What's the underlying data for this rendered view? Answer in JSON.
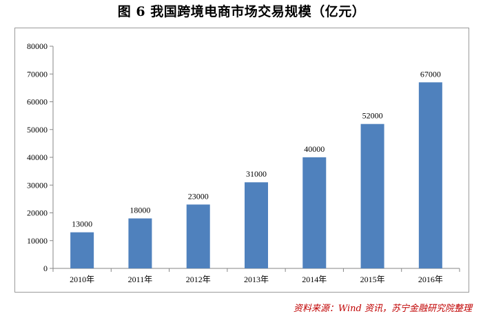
{
  "page": {
    "title": "图 6  我国跨境电商市场交易规模（亿元）",
    "source": "资料来源：Wind 资讯，苏宁金融研究院整理"
  },
  "chart_data": {
    "type": "bar",
    "title": "图 6  我国跨境电商市场交易规模（亿元）",
    "categories": [
      "2010年",
      "2011年",
      "2012年",
      "2013年",
      "2014年",
      "2015年",
      "2016年"
    ],
    "values": [
      13000,
      18000,
      23000,
      31000,
      40000,
      52000,
      67000
    ],
    "data_labels": [
      "13000",
      "18000",
      "23000",
      "31000",
      "40000",
      "52000",
      "67000"
    ],
    "ylim": [
      0,
      80000
    ],
    "yticks": [
      0,
      10000,
      20000,
      30000,
      40000,
      50000,
      60000,
      70000,
      80000
    ],
    "ytick_labels": [
      "0",
      "10000",
      "20000",
      "30000",
      "40000",
      "50000",
      "60000",
      "70000",
      "80000"
    ],
    "xlabel": "",
    "ylabel": "",
    "grid": false,
    "legend": "none",
    "bar_color": "#4f81bd"
  }
}
